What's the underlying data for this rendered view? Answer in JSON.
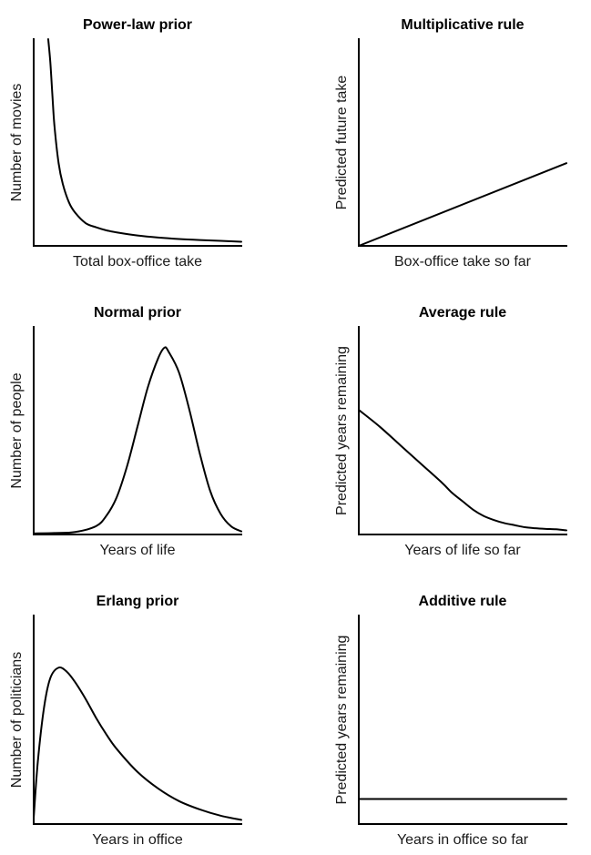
{
  "chart_data": [
    {
      "id": "power-law-prior",
      "type": "line",
      "title": "Power-law prior",
      "xlabel": "Total box-office take",
      "ylabel": "Number of movies",
      "xlim": [
        0,
        1
      ],
      "ylim": [
        0,
        1
      ],
      "grid": false,
      "series": [
        {
          "x": [
            0.07,
            0.08,
            0.09,
            0.1,
            0.12,
            0.14,
            0.17,
            0.2,
            0.25,
            0.3,
            0.35,
            0.4,
            0.5,
            0.6,
            0.7,
            0.8,
            0.9,
            1.0
          ],
          "y": [
            1.0,
            0.89,
            0.73,
            0.58,
            0.4,
            0.3,
            0.21,
            0.16,
            0.11,
            0.09,
            0.075,
            0.065,
            0.05,
            0.04,
            0.033,
            0.028,
            0.024,
            0.02
          ]
        }
      ]
    },
    {
      "id": "multiplicative-rule",
      "type": "line",
      "title": "Multiplicative rule",
      "xlabel": "Box-office take so far",
      "ylabel": "Predicted future take",
      "xlim": [
        0,
        1
      ],
      "ylim": [
        0,
        1
      ],
      "grid": false,
      "series": [
        {
          "x": [
            0,
            1
          ],
          "y": [
            0,
            0.4
          ]
        }
      ]
    },
    {
      "id": "normal-prior",
      "type": "line",
      "title": "Normal prior",
      "xlabel": "Years of life",
      "ylabel": "Number of people",
      "xlim": [
        0,
        1
      ],
      "ylim": [
        0,
        1
      ],
      "grid": false,
      "series": [
        {
          "x": [
            0,
            0.1,
            0.2,
            0.3,
            0.35,
            0.4,
            0.45,
            0.5,
            0.55,
            0.6,
            0.63,
            0.65,
            0.7,
            0.75,
            0.8,
            0.85,
            0.9,
            0.95,
            1.0
          ],
          "y": [
            0.005,
            0.007,
            0.012,
            0.04,
            0.09,
            0.18,
            0.33,
            0.52,
            0.71,
            0.85,
            0.9,
            0.88,
            0.78,
            0.6,
            0.39,
            0.21,
            0.1,
            0.04,
            0.015
          ]
        }
      ]
    },
    {
      "id": "average-rule",
      "type": "line",
      "title": "Average rule",
      "xlabel": "Years of life so far",
      "ylabel": "Predicted years remaining",
      "xlim": [
        0,
        1
      ],
      "ylim": [
        0,
        1
      ],
      "grid": false,
      "series": [
        {
          "x": [
            0,
            0.1,
            0.2,
            0.3,
            0.4,
            0.45,
            0.5,
            0.55,
            0.6,
            0.65,
            0.7,
            0.75,
            0.8,
            0.85,
            0.9,
            0.95,
            1.0
          ],
          "y": [
            0.6,
            0.52,
            0.43,
            0.34,
            0.25,
            0.2,
            0.16,
            0.12,
            0.09,
            0.07,
            0.055,
            0.045,
            0.035,
            0.03,
            0.027,
            0.025,
            0.02
          ]
        }
      ]
    },
    {
      "id": "erlang-prior",
      "type": "line",
      "title": "Erlang prior",
      "xlabel": "Years in office",
      "ylabel": "Number of politicians",
      "xlim": [
        0,
        1
      ],
      "ylim": [
        0,
        1
      ],
      "grid": false,
      "series": [
        {
          "x": [
            0,
            0.02,
            0.05,
            0.08,
            0.12,
            0.16,
            0.2,
            0.25,
            0.3,
            0.35,
            0.4,
            0.5,
            0.6,
            0.7,
            0.8,
            0.9,
            1.0
          ],
          "y": [
            0.03,
            0.3,
            0.56,
            0.7,
            0.75,
            0.73,
            0.68,
            0.6,
            0.51,
            0.43,
            0.36,
            0.25,
            0.17,
            0.11,
            0.07,
            0.04,
            0.02
          ]
        }
      ]
    },
    {
      "id": "additive-rule",
      "type": "line",
      "title": "Additive rule",
      "xlabel": "Years in office so far",
      "ylabel": "Predicted years remaining",
      "xlim": [
        0,
        1
      ],
      "ylim": [
        0,
        1
      ],
      "grid": false,
      "series": [
        {
          "x": [
            0,
            1
          ],
          "y": [
            0.12,
            0.12
          ]
        }
      ]
    }
  ]
}
